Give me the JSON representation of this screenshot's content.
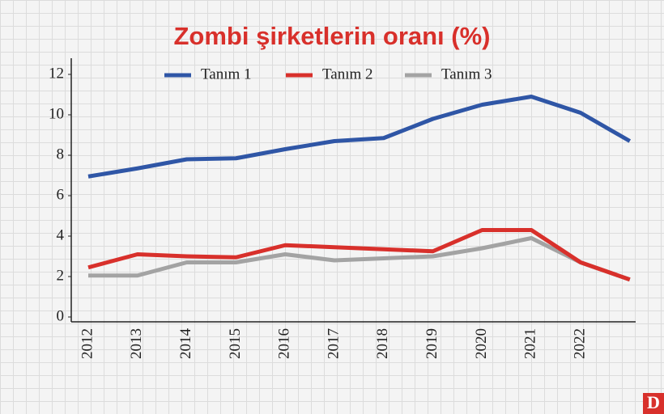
{
  "chart_data": {
    "type": "line",
    "title": "Zombi şirketlerin oranı (%)",
    "categories": [
      "2012",
      "2013",
      "2014",
      "2015",
      "2016",
      "2017",
      "2018",
      "2019",
      "2020",
      "2021",
      "2022",
      null
    ],
    "series": [
      {
        "name": "Tanım 1",
        "color": "#2f56a6",
        "values": [
          6.95,
          7.35,
          7.8,
          7.85,
          8.3,
          8.7,
          8.85,
          9.8,
          10.5,
          10.9,
          10.1,
          8.7
        ]
      },
      {
        "name": "Tanım 2",
        "color": "#d8302b",
        "values": [
          2.45,
          3.1,
          3.0,
          2.95,
          3.55,
          3.45,
          3.35,
          3.25,
          4.3,
          4.3,
          2.7,
          1.85
        ]
      },
      {
        "name": "Tanım 3",
        "color": "#a3a3a3",
        "values": [
          2.05,
          2.05,
          2.7,
          2.7,
          3.1,
          2.8,
          2.9,
          3.0,
          3.4,
          3.9,
          2.7,
          1.85
        ]
      }
    ],
    "ylim": [
      0,
      12
    ],
    "yticks": [
      0,
      2,
      4,
      6,
      8,
      10,
      12
    ],
    "grid": false,
    "legend": "top"
  },
  "logo": "D"
}
